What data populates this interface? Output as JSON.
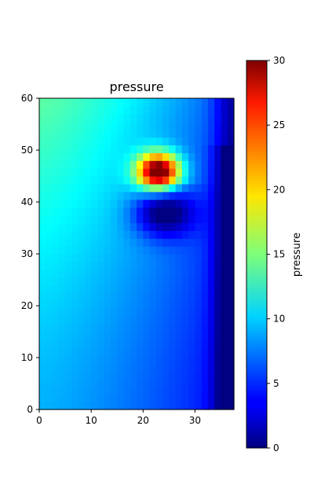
{
  "chart_data": {
    "type": "heatmap",
    "title": "pressure",
    "xlim": [
      0,
      37.5
    ],
    "ylim": [
      0,
      60
    ],
    "x_ticks": [
      0,
      10,
      20,
      30
    ],
    "y_ticks": [
      0,
      10,
      20,
      30,
      40,
      50,
      60
    ],
    "colormap": "jet",
    "colorbar": {
      "label": "pressure",
      "range": [
        0,
        30
      ],
      "ticks": [
        0,
        5,
        10,
        15,
        20,
        25,
        30
      ]
    },
    "field_features": [
      {
        "name": "high-pressure source",
        "x": 23,
        "y": 46,
        "value": 30
      },
      {
        "name": "low-pressure wake",
        "x": 24,
        "y": 38,
        "value": 1
      },
      {
        "name": "right-boundary low",
        "x": 36,
        "y": 20,
        "value": 0.5
      }
    ],
    "background_gradient": {
      "left_top": 14,
      "left_bottom": 9,
      "right_bottom": 1
    }
  }
}
